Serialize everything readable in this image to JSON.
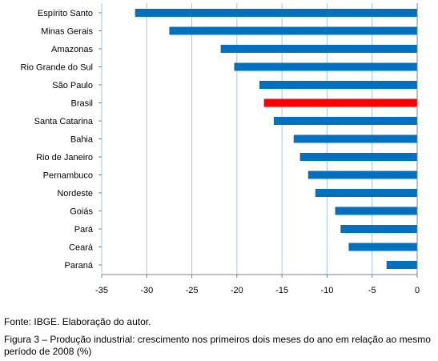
{
  "chart_data": {
    "type": "bar",
    "orientation": "horizontal",
    "categories": [
      "Espírito Santo",
      "Minas Gerais",
      "Amazonas",
      "Rio Grande do Sul",
      "São Paulo",
      "Brasil",
      "Santa Catarina",
      "Bahia",
      "Rio de Janeiro",
      "Pernambuco",
      "Nordeste",
      "Goiás",
      "Pará",
      "Ceará",
      "Paraná"
    ],
    "values": [
      -31.3,
      -27.5,
      -21.8,
      -20.3,
      -17.5,
      -17.0,
      -15.9,
      -13.7,
      -13.0,
      -12.1,
      -11.3,
      -9.1,
      -8.5,
      -7.6,
      -3.4
    ],
    "highlight_category": "Brasil",
    "colors": {
      "bar": "#0070c0",
      "highlight": "#ff0000",
      "grid": "#a9c4e0",
      "axis": "#808080"
    },
    "xlim": [
      -35,
      0
    ],
    "xticks": [
      "-35",
      "-30",
      "-25",
      "-20",
      "-15",
      "-10",
      "-5",
      "0"
    ],
    "grid": true
  },
  "captions": {
    "source": "Fonte: IBGE. Elaboração do autor.",
    "figure": "Figura 3 – Produção industrial: crescimento nos primeiros dois meses do ano em relação ao mesmo período de 2008 (%)"
  }
}
